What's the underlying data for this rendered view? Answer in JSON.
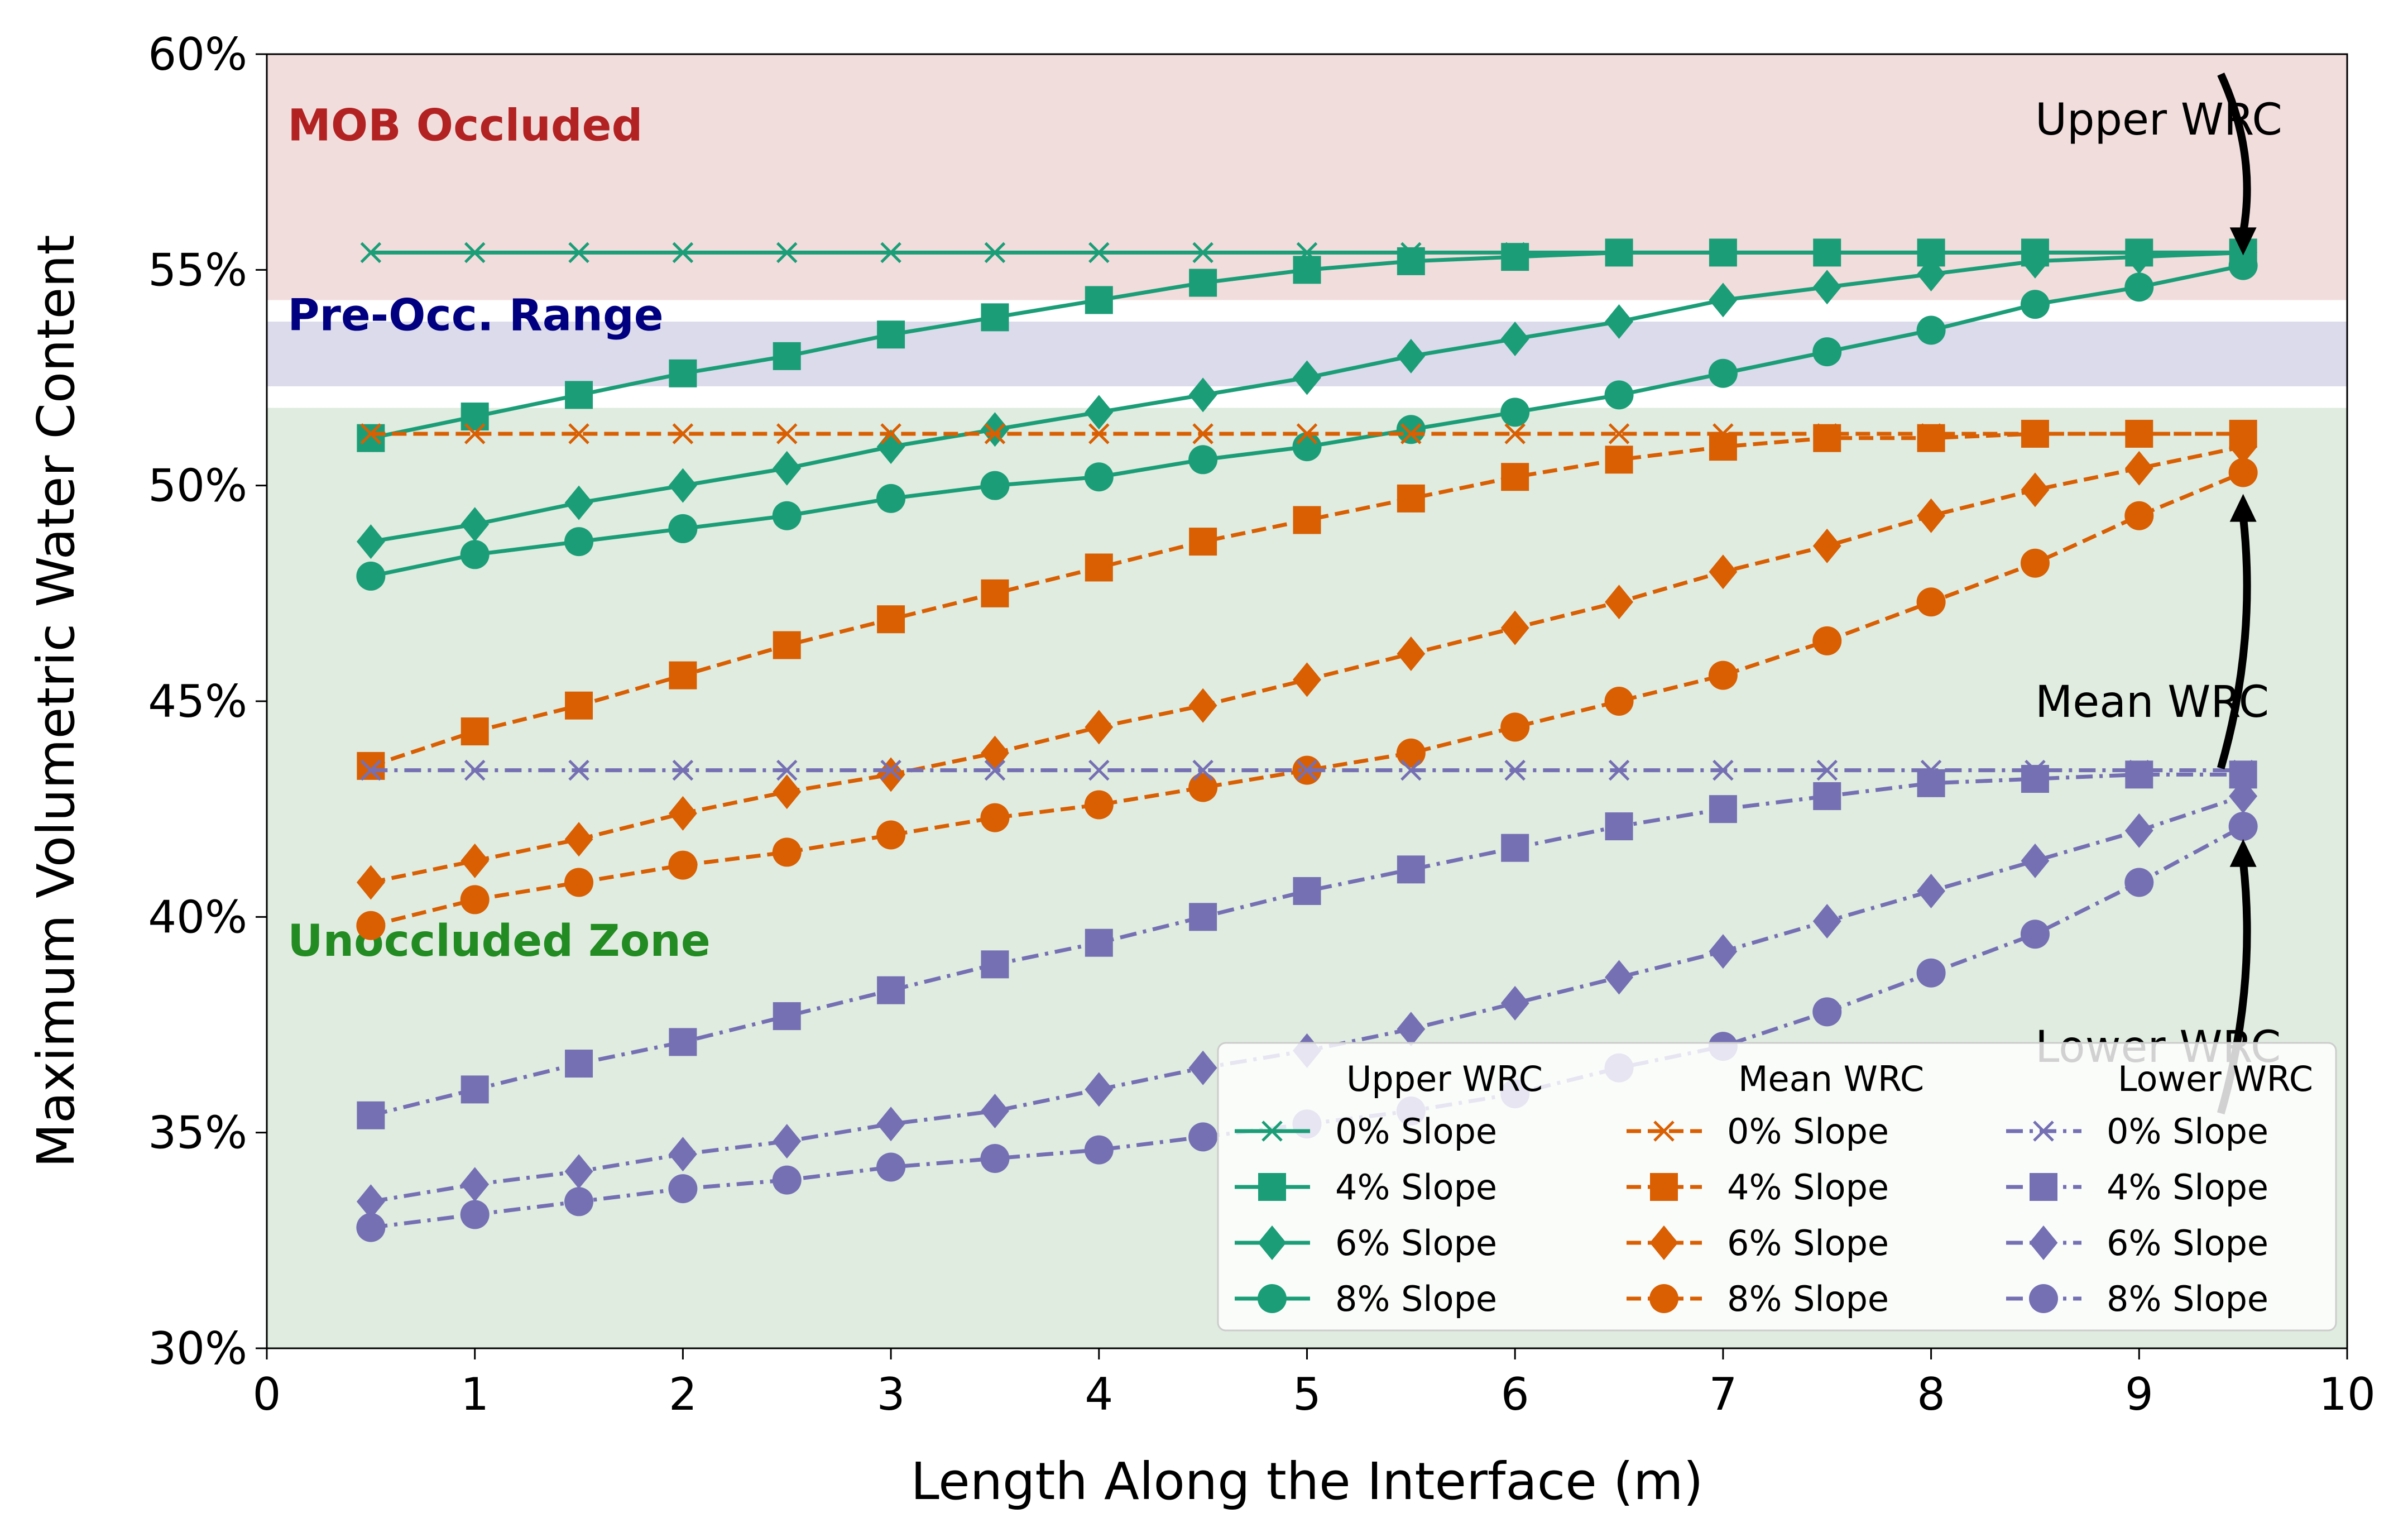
{
  "chart_data": {
    "type": "line",
    "xlabel": "Length Along the Interface (m)",
    "ylabel": "Maximum Volumetric Water Content",
    "xlim": [
      0,
      10
    ],
    "ylim": [
      30,
      60
    ],
    "x_ticks": [
      0,
      1,
      2,
      3,
      4,
      5,
      6,
      7,
      8,
      9,
      10
    ],
    "y_ticks": [
      30,
      35,
      40,
      45,
      50,
      55,
      60
    ],
    "y_tick_labels": [
      "30%",
      "35%",
      "40%",
      "45%",
      "50%",
      "55%",
      "60%"
    ],
    "grid": false,
    "zones": [
      {
        "label": "MOB Occluded",
        "y_from": 54.3,
        "y_to": 60,
        "color": "#f2dddd",
        "label_color": "#b22222"
      },
      {
        "label": "Pre-Occ. Range",
        "y_from": 52.3,
        "y_to": 53.8,
        "color": "#dbdbec",
        "label_color": "#000080"
      },
      {
        "label": "Unoccluded Zone",
        "y_from": 30,
        "y_to": 51.8,
        "color": "#e0ece0",
        "label_color": "#228b22"
      }
    ],
    "x": [
      0.5,
      1,
      1.5,
      2,
      2.5,
      3,
      3.5,
      4,
      4.5,
      5,
      5.5,
      6,
      6.5,
      7,
      7.5,
      8,
      8.5,
      9,
      9.5
    ],
    "groups": [
      {
        "name": "Upper WRC",
        "color": "#1b9e77",
        "dash": "solid",
        "series": [
          {
            "name": "0% Slope",
            "marker": "x",
            "values": [
              55.4,
              55.4,
              55.4,
              55.4,
              55.4,
              55.4,
              55.4,
              55.4,
              55.4,
              55.4,
              55.4,
              55.4,
              55.4,
              55.4,
              55.4,
              55.4,
              55.4,
              55.4,
              55.4
            ]
          },
          {
            "name": "4% Slope",
            "marker": "square",
            "values": [
              51.1,
              51.6,
              52.1,
              52.6,
              53.0,
              53.5,
              53.9,
              54.3,
              54.7,
              55.0,
              55.2,
              55.3,
              55.4,
              55.4,
              55.4,
              55.4,
              55.4,
              55.4,
              55.4
            ]
          },
          {
            "name": "6% Slope",
            "marker": "diamond",
            "values": [
              48.7,
              49.1,
              49.6,
              50.0,
              50.4,
              50.9,
              51.3,
              51.7,
              52.1,
              52.5,
              53.0,
              53.4,
              53.8,
              54.3,
              54.6,
              54.9,
              55.2,
              55.3,
              55.4
            ]
          },
          {
            "name": "8% Slope",
            "marker": "circle",
            "values": [
              47.9,
              48.4,
              48.7,
              49.0,
              49.3,
              49.7,
              50.0,
              50.2,
              50.6,
              50.9,
              51.3,
              51.7,
              52.1,
              52.6,
              53.1,
              53.6,
              54.2,
              54.6,
              55.1
            ]
          }
        ]
      },
      {
        "name": "Mean WRC",
        "color": "#d95f02",
        "dash": "dashed",
        "series": [
          {
            "name": "0% Slope",
            "marker": "x",
            "values": [
              51.2,
              51.2,
              51.2,
              51.2,
              51.2,
              51.2,
              51.2,
              51.2,
              51.2,
              51.2,
              51.2,
              51.2,
              51.2,
              51.2,
              51.2,
              51.2,
              51.2,
              51.2,
              51.2
            ]
          },
          {
            "name": "4% Slope",
            "marker": "square",
            "values": [
              43.5,
              44.3,
              44.9,
              45.6,
              46.3,
              46.9,
              47.5,
              48.1,
              48.7,
              49.2,
              49.7,
              50.2,
              50.6,
              50.9,
              51.1,
              51.1,
              51.2,
              51.2,
              51.2
            ]
          },
          {
            "name": "6% Slope",
            "marker": "diamond",
            "values": [
              40.8,
              41.3,
              41.8,
              42.4,
              42.9,
              43.3,
              43.8,
              44.4,
              44.9,
              45.5,
              46.1,
              46.7,
              47.3,
              48.0,
              48.6,
              49.3,
              49.9,
              50.4,
              50.9
            ]
          },
          {
            "name": "8% Slope",
            "marker": "circle",
            "values": [
              39.8,
              40.4,
              40.8,
              41.2,
              41.5,
              41.9,
              42.3,
              42.6,
              43.0,
              43.4,
              43.8,
              44.4,
              45.0,
              45.6,
              46.4,
              47.3,
              48.2,
              49.3,
              50.3
            ]
          }
        ]
      },
      {
        "name": "Lower WRC",
        "color": "#7570b3",
        "dash": "dashdot",
        "series": [
          {
            "name": "0% Slope",
            "marker": "x",
            "values": [
              43.4,
              43.4,
              43.4,
              43.4,
              43.4,
              43.4,
              43.4,
              43.4,
              43.4,
              43.4,
              43.4,
              43.4,
              43.4,
              43.4,
              43.4,
              43.4,
              43.4,
              43.4,
              43.4
            ]
          },
          {
            "name": "4% Slope",
            "marker": "square",
            "values": [
              35.4,
              36.0,
              36.6,
              37.1,
              37.7,
              38.3,
              38.9,
              39.4,
              40.0,
              40.6,
              41.1,
              41.6,
              42.1,
              42.5,
              42.8,
              43.1,
              43.2,
              43.3,
              43.3
            ]
          },
          {
            "name": "6% Slope",
            "marker": "diamond",
            "values": [
              33.4,
              33.8,
              34.1,
              34.5,
              34.8,
              35.2,
              35.5,
              36.0,
              36.5,
              36.9,
              37.4,
              38.0,
              38.6,
              39.2,
              39.9,
              40.6,
              41.3,
              42.0,
              42.8
            ]
          },
          {
            "name": "8% Slope",
            "marker": "circle",
            "values": [
              32.8,
              33.1,
              33.4,
              33.7,
              33.9,
              34.2,
              34.4,
              34.6,
              34.9,
              35.2,
              35.5,
              35.9,
              36.5,
              37.0,
              37.8,
              38.7,
              39.6,
              40.8,
              42.1
            ]
          }
        ]
      }
    ],
    "annotations": [
      {
        "text": "Upper WRC",
        "text_x": 8.5,
        "text_y": 58.5,
        "point_x": 9.5,
        "point_y": 55.4
      },
      {
        "text": "Mean WRC",
        "text_x": 8.5,
        "text_y": 45.0,
        "point_x": 9.5,
        "point_y": 50.0
      },
      {
        "text": "Lower WRC",
        "text_x": 8.5,
        "text_y": 37.0,
        "point_x": 9.5,
        "point_y": 42.0
      }
    ],
    "legend": {
      "placement": "lower right",
      "columns": 3
    }
  }
}
